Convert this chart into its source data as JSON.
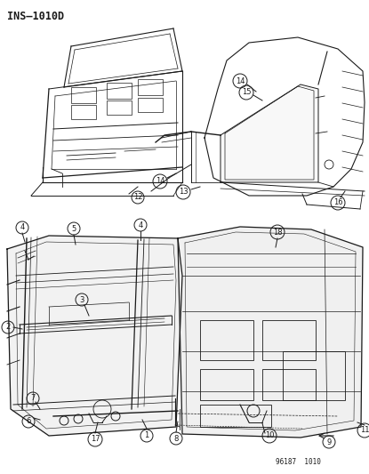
{
  "title": "INS–1010D",
  "footer": "96187  1010",
  "bg_color": "#ffffff",
  "lc": "#1a1a1a",
  "fig_w": 4.15,
  "fig_h": 5.33,
  "dpi": 100
}
